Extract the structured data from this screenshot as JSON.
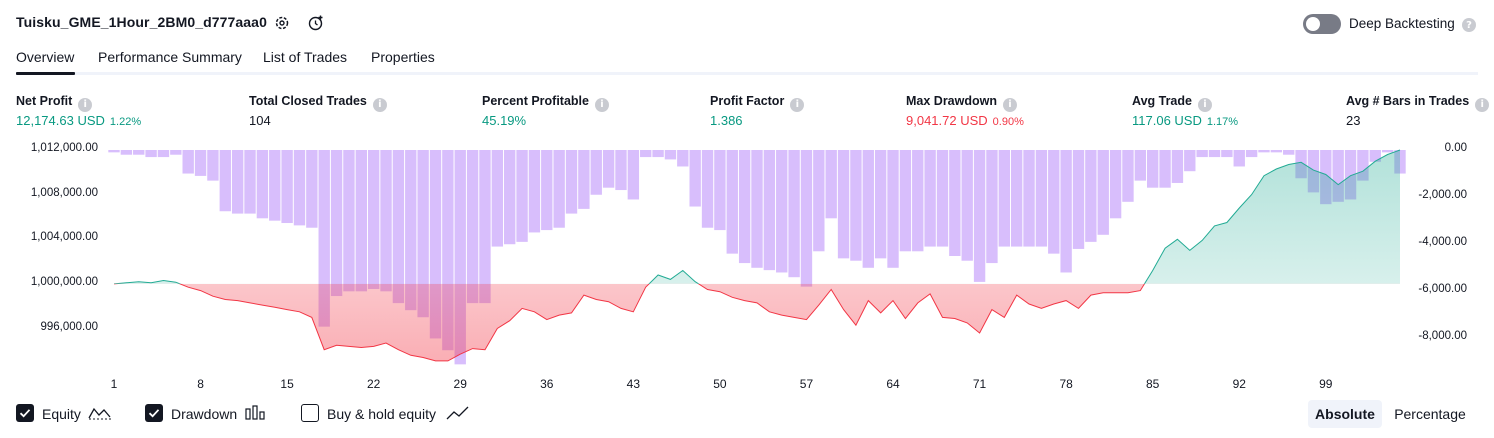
{
  "header": {
    "title": "Tuisku_GME_1Hour_2BM0_d777aaa0",
    "deep_backtesting_label": "Deep Backtesting",
    "deep_backtesting_enabled": false
  },
  "tabs": [
    {
      "label": "Overview",
      "active": true
    },
    {
      "label": "Performance Summary",
      "active": false
    },
    {
      "label": "List of Trades",
      "active": false
    },
    {
      "label": "Properties",
      "active": false
    }
  ],
  "metrics": [
    {
      "label": "Net Profit",
      "value": "12,174.63 USD",
      "pct": "1.22%",
      "tone": "green"
    },
    {
      "label": "Total Closed Trades",
      "value": "104",
      "pct": "",
      "tone": "neutral"
    },
    {
      "label": "Percent Profitable",
      "value": "45.19%",
      "pct": "",
      "tone": "green"
    },
    {
      "label": "Profit Factor",
      "value": "1.386",
      "pct": "",
      "tone": "green"
    },
    {
      "label": "Max Drawdown",
      "value": "9,041.72 USD",
      "pct": "0.90%",
      "tone": "red"
    },
    {
      "label": "Avg Trade",
      "value": "117.06 USD",
      "pct": "1.17%",
      "tone": "green"
    },
    {
      "label": "Avg # Bars in Trades",
      "value": "23",
      "pct": "",
      "tone": "neutral"
    }
  ],
  "chart_data": {
    "type": "line",
    "baseline": 1000000,
    "left_axis": {
      "ticks": [
        "1,012,000.00",
        "1,008,000.00",
        "1,004,000.00",
        "1,000,000.00",
        "996,000.00"
      ],
      "min": 993000,
      "max": 1012000
    },
    "right_axis": {
      "ticks": [
        "0.00",
        "-2,000.00",
        "-4,000.00",
        "-6,000.00",
        "-8,000.00"
      ],
      "min": -9000,
      "max": 0
    },
    "x_ticks": [
      "1",
      "8",
      "15",
      "22",
      "29",
      "36",
      "43",
      "50",
      "57",
      "64",
      "71",
      "78",
      "85",
      "92",
      "99"
    ],
    "colors": {
      "profit_line": "#22ab94",
      "loss_line": "#f23645",
      "drawdown_bar": "#d1b3fb",
      "drawdown_bar_dark": "#b08fe8"
    },
    "series": [
      {
        "name": "Equity",
        "x": [
          1,
          2,
          3,
          4,
          5,
          6,
          7,
          8,
          9,
          10,
          11,
          12,
          13,
          14,
          15,
          16,
          17,
          18,
          19,
          20,
          21,
          22,
          23,
          24,
          25,
          26,
          27,
          28,
          29,
          30,
          31,
          32,
          33,
          34,
          35,
          36,
          37,
          38,
          39,
          40,
          41,
          42,
          43,
          44,
          45,
          46,
          47,
          48,
          49,
          50,
          51,
          52,
          53,
          54,
          55,
          56,
          57,
          58,
          59,
          60,
          61,
          62,
          63,
          64,
          65,
          66,
          67,
          68,
          69,
          70,
          71,
          72,
          73,
          74,
          75,
          76,
          77,
          78,
          79,
          80,
          81,
          82,
          83,
          84,
          85,
          86,
          87,
          88,
          89,
          90,
          91,
          92,
          93,
          94,
          95,
          96,
          97,
          98,
          99,
          100,
          101,
          102,
          103,
          104,
          105
        ],
        "values": [
          1000000,
          1000100,
          1000200,
          1000100,
          1000300,
          1000150,
          999700,
          999400,
          998900,
          998600,
          998500,
          998300,
          998100,
          997900,
          997700,
          997500,
          997000,
          994100,
          994500,
          994400,
          994300,
          994400,
          994700,
          994100,
          993600,
          993400,
          993100,
          993100,
          993700,
          994200,
          994100,
          996000,
          996700,
          997800,
          997500,
          996800,
          997200,
          997400,
          999000,
          998600,
          998400,
          997800,
          997500,
          999700,
          1000800,
          1000400,
          1001200,
          1000200,
          999500,
          999300,
          998800,
          998500,
          998300,
          997500,
          997200,
          997000,
          996800,
          998100,
          999500,
          997700,
          996300,
          998500,
          997400,
          998500,
          996900,
          998300,
          999100,
          997000,
          996900,
          996500,
          995600,
          997700,
          997000,
          999000,
          998200,
          997800,
          998200,
          998500,
          997800,
          999000,
          999200,
          999200,
          999200,
          999400,
          1001200,
          1003200,
          1004000,
          1003000,
          1003900,
          1005200,
          1005500,
          1006800,
          1008000,
          1009700,
          1010300,
          1010700,
          1010900,
          1010200,
          1009800,
          1008900,
          1009700,
          1010100,
          1011000,
          1011600,
          1012000
        ]
      },
      {
        "name": "Drawdown",
        "x": [
          1,
          2,
          3,
          4,
          5,
          6,
          7,
          8,
          9,
          10,
          11,
          12,
          13,
          14,
          15,
          16,
          17,
          18,
          19,
          20,
          21,
          22,
          23,
          24,
          25,
          26,
          27,
          28,
          29,
          30,
          31,
          32,
          33,
          34,
          35,
          36,
          37,
          38,
          39,
          40,
          41,
          42,
          43,
          44,
          45,
          46,
          47,
          48,
          49,
          50,
          51,
          52,
          53,
          54,
          55,
          56,
          57,
          58,
          59,
          60,
          61,
          62,
          63,
          64,
          65,
          66,
          67,
          68,
          69,
          70,
          71,
          72,
          73,
          74,
          75,
          76,
          77,
          78,
          79,
          80,
          81,
          82,
          83,
          84,
          85,
          86,
          87,
          88,
          89,
          90,
          91,
          92,
          93,
          94,
          95,
          96,
          97,
          98,
          99,
          100,
          101,
          102,
          103,
          104,
          105
        ],
        "values": [
          -100,
          -200,
          -200,
          -300,
          -300,
          -200,
          -1000,
          -1100,
          -1300,
          -2600,
          -2700,
          -2700,
          -2900,
          -3000,
          -3100,
          -3200,
          -3300,
          -7500,
          -6200,
          -6000,
          -6000,
          -5900,
          -6000,
          -6500,
          -6800,
          -7100,
          -8000,
          -8500,
          -9100,
          -6500,
          -6500,
          -4100,
          -4000,
          -3900,
          -3500,
          -3400,
          -3300,
          -2700,
          -2500,
          -1900,
          -1600,
          -1700,
          -2100,
          -300,
          -300,
          -400,
          -700,
          -2400,
          -3300,
          -3400,
          -4400,
          -4800,
          -5000,
          -5100,
          -5200,
          -5400,
          -5800,
          -4300,
          -2900,
          -4600,
          -4700,
          -5000,
          -4600,
          -5000,
          -4300,
          -4300,
          -4100,
          -4100,
          -4500,
          -4700,
          -5600,
          -4800,
          -4100,
          -4100,
          -4100,
          -4100,
          -4400,
          -5200,
          -4200,
          -3900,
          -3600,
          -2900,
          -2200,
          -1300,
          -1600,
          -1600,
          -1400,
          -900,
          -300,
          -300,
          -300,
          -700,
          -300,
          -100,
          -100,
          -200,
          -1200,
          -1800,
          -2300,
          -2200,
          -2100,
          -1300,
          -500,
          -100,
          -1000
        ]
      }
    ],
    "legend": [
      {
        "label": "Equity",
        "checked": true
      },
      {
        "label": "Drawdown",
        "checked": true
      },
      {
        "label": "Buy & hold equity",
        "checked": false
      }
    ],
    "grid": false
  },
  "footer": {
    "scale_options": [
      {
        "label": "Absolute",
        "active": true
      },
      {
        "label": "Percentage",
        "active": false
      }
    ]
  },
  "icons": {
    "settings": "gear-icon",
    "alert": "alert-icon",
    "info": "info-icon",
    "check": "check-icon"
  }
}
